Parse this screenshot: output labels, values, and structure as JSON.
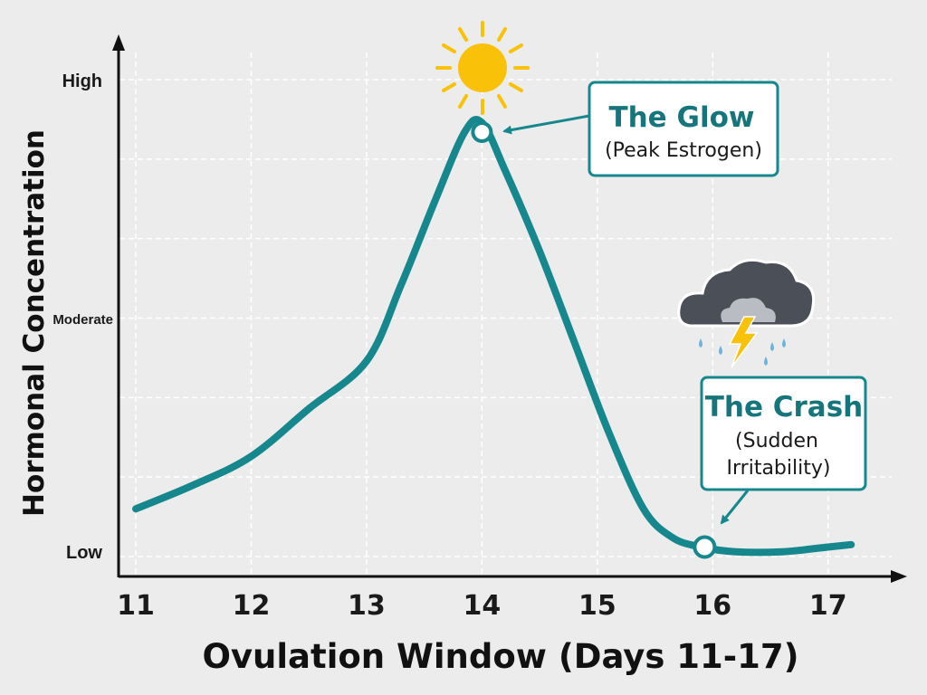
{
  "chart_data": {
    "type": "line",
    "xlabel": "Ovulation Window (Days 11-17)",
    "ylabel": "Hormonal Concentration",
    "x_ticks": [
      "11",
      "12",
      "13",
      "14",
      "15",
      "16",
      "17"
    ],
    "y_ticks": [
      "Low",
      "Moderate",
      "High"
    ],
    "xlim": [
      11,
      17.3
    ],
    "ylim": [
      0,
      1.05
    ],
    "y_tick_values": [
      0.05,
      0.55,
      1.05
    ],
    "series": [
      {
        "x": [
          11.0,
          11.5,
          12.0,
          12.5,
          13.0,
          13.3,
          13.6,
          13.85,
          14.0,
          14.2,
          14.5,
          14.8,
          15.1,
          15.4,
          15.65,
          15.9,
          16.2,
          16.6,
          17.0,
          17.2
        ],
        "y": [
          0.15,
          0.2,
          0.26,
          0.36,
          0.46,
          0.62,
          0.8,
          0.94,
          0.96,
          0.86,
          0.69,
          0.5,
          0.31,
          0.15,
          0.09,
          0.07,
          0.06,
          0.06,
          0.07,
          0.075
        ],
        "color": "#17878e"
      }
    ],
    "grid": true,
    "annotations": [
      {
        "title": "The Glow",
        "subtitle": "(Peak Estrogen)",
        "x": 14.0,
        "y": 0.94,
        "icon": "sun-icon"
      },
      {
        "title": "The Crash",
        "subtitle_lines": [
          "(Sudden",
          "Irritability)"
        ],
        "x": 15.93,
        "y": 0.07,
        "icon": "storm-cloud-icon"
      }
    ]
  },
  "colors": {
    "line": "#17878e",
    "accent_text": "#15757b",
    "sun": "#f9c108",
    "background": "#ececec"
  }
}
